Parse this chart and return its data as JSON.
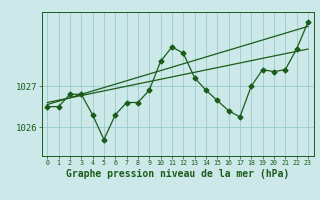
{
  "xlabel": "Graphe pression niveau de la mer (hPa)",
  "background_color": "#cce8e8",
  "plot_bg_color": "#cce8e8",
  "grid_color": "#99cccc",
  "line_color": "#1a5c1a",
  "yticks": [
    1026,
    1027
  ],
  "ylim": [
    1025.3,
    1028.8
  ],
  "xlim": [
    -0.5,
    23.5
  ],
  "xticks": [
    0,
    1,
    2,
    3,
    4,
    5,
    6,
    7,
    8,
    9,
    10,
    11,
    12,
    13,
    14,
    15,
    16,
    17,
    18,
    19,
    20,
    21,
    22,
    23
  ],
  "hours": [
    0,
    1,
    2,
    3,
    4,
    5,
    6,
    7,
    8,
    9,
    10,
    11,
    12,
    13,
    14,
    15,
    16,
    17,
    18,
    19,
    20,
    21,
    22,
    23
  ],
  "pressure": [
    1026.5,
    1026.5,
    1026.8,
    1026.8,
    1026.3,
    1025.7,
    1026.3,
    1026.6,
    1026.6,
    1026.9,
    1027.6,
    1027.95,
    1027.8,
    1027.2,
    1026.9,
    1026.65,
    1026.4,
    1026.25,
    1027.0,
    1027.4,
    1027.35,
    1027.4,
    1027.9,
    1028.55
  ],
  "trend1_x": [
    0,
    23
  ],
  "trend1_y": [
    1026.55,
    1028.45
  ],
  "trend2_x": [
    0,
    23
  ],
  "trend2_y": [
    1026.6,
    1027.9
  ],
  "marker_size": 2.5,
  "line_width": 0.9,
  "fontsize_xlabel": 7,
  "fontsize_ytick": 6.5,
  "fontsize_xtick": 4.8
}
